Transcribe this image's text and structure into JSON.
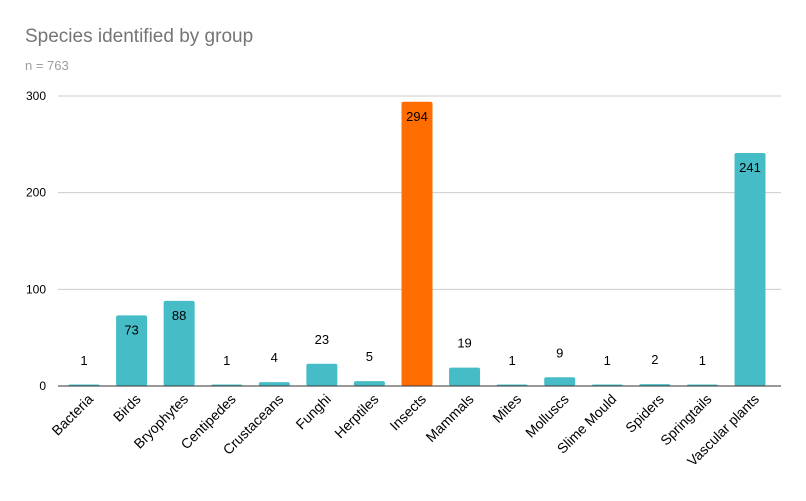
{
  "chart_data": {
    "type": "bar",
    "title": "Species identified by group",
    "subtitle": "n = 763",
    "xlabel": "",
    "ylabel": "",
    "ylim": [
      0,
      300
    ],
    "yticks": [
      0,
      100,
      200,
      300
    ],
    "grid": true,
    "legend": "none",
    "categories": [
      "Bacteria",
      "Birds",
      "Bryophytes",
      "Centipedes",
      "Crustaceans",
      "Funghi",
      "Herptiles",
      "Insects",
      "Mammals",
      "Mites",
      "Molluscs",
      "Slime Mould",
      "Spiders",
      "Springtails",
      "Vascular plants"
    ],
    "values": [
      1,
      73,
      88,
      1,
      4,
      23,
      5,
      294,
      19,
      1,
      9,
      1,
      2,
      1,
      241
    ],
    "data_labels": [
      "1",
      "73",
      "88",
      "1",
      "4",
      "23",
      "5",
      "294",
      "19",
      "1",
      "9",
      "1",
      "2",
      "1",
      "241"
    ],
    "highlight_category": "Insects",
    "colors": {
      "bar": "#46bdc6",
      "highlight": "#ff6d01",
      "grid": "#cccccc",
      "axis": "#333333",
      "tick_text": "#000000",
      "title": "#757575",
      "subtitle": "#9e9e9e"
    }
  }
}
